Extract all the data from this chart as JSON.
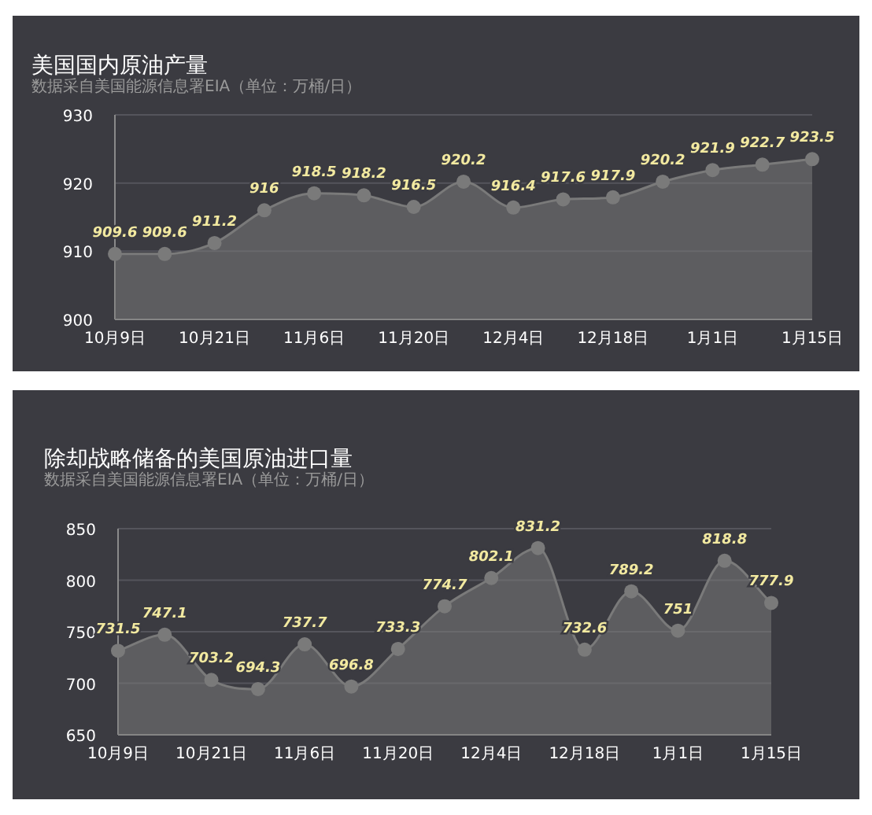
{
  "chart_data": [
    {
      "type": "area",
      "title": "美国国内原油产量",
      "subtitle": "数据采自美国能源信息署EIA（单位：万桶/日）",
      "categories": [
        "10月9日",
        null,
        "10月21日",
        null,
        "11月6日",
        null,
        "11月20日",
        null,
        "12月4日",
        null,
        "12月18日",
        null,
        "1月1日",
        null,
        "1月15日"
      ],
      "series": [
        {
          "color": "#7a7a7a",
          "values": [
            909.6,
            909.6,
            911.2,
            916,
            918.5,
            918.2,
            916.5,
            920.2,
            916.4,
            917.6,
            917.9,
            920.2,
            921.9,
            922.7,
            923.5
          ]
        }
      ],
      "ylim": [
        900,
        930
      ],
      "yticks": [
        900,
        910,
        920,
        930
      ],
      "grid": "y",
      "marker": "circle",
      "data_labels": true
    },
    {
      "type": "area",
      "title": "除却战略储备的美国原油进口量",
      "subtitle": "数据采自美国能源信息署EIA（单位：万桶/日）",
      "categories": [
        "10月9日",
        null,
        "10月21日",
        null,
        "11月6日",
        null,
        "11月20日",
        null,
        "12月4日",
        null,
        "12月18日",
        null,
        "1月1日",
        null,
        "1月15日"
      ],
      "series": [
        {
          "color": "#7a7a7a",
          "values": [
            731.5,
            747.1,
            703.2,
            694.3,
            737.7,
            696.8,
            733.3,
            774.7,
            802.1,
            831.2,
            732.6,
            789.2,
            751,
            818.8,
            777.9
          ]
        }
      ],
      "ylim": [
        650,
        850
      ],
      "yticks": [
        650,
        700,
        750,
        800,
        850
      ],
      "grid": "y",
      "marker": "circle",
      "data_labels": true
    }
  ]
}
